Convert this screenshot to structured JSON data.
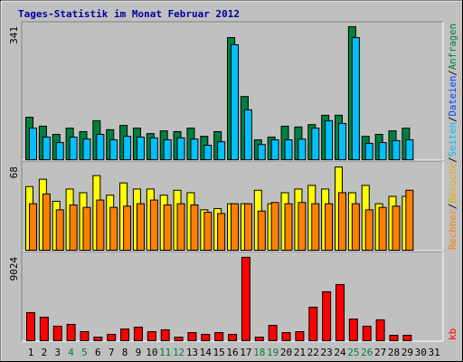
{
  "title": "Tages-Statistik im Monat Februar 2012",
  "separator": "/",
  "extra_label": {
    "text": "Dateien",
    "color": "#0040FF"
  },
  "chart_data": [
    {
      "type": "bar",
      "ylim": [
        0,
        348
      ],
      "yticks": [
        341
      ],
      "categories": [
        "1",
        "2",
        "3",
        "4",
        "5",
        "6",
        "7",
        "8",
        "9",
        "10",
        "11",
        "12",
        "13",
        "14",
        "15",
        "16",
        "17",
        "18",
        "19",
        "20",
        "21",
        "22",
        "23",
        "24",
        "25",
        "26",
        "27",
        "28",
        "29",
        "30",
        "31"
      ],
      "category_colors": [
        "#000000",
        "#000000",
        "#000000",
        "#008040",
        "#008040",
        "#000000",
        "#000000",
        "#000000",
        "#000000",
        "#000000",
        "#008040",
        "#008040",
        "#000000",
        "#000000",
        "#000000",
        "#000000",
        "#000000",
        "#008040",
        "#008040",
        "#000000",
        "#000000",
        "#000000",
        "#000000",
        "#000000",
        "#008040",
        "#008040",
        "#000000",
        "#000000",
        "#000000",
        "#000000",
        "#000000"
      ],
      "series": [
        {
          "name": "Anfragen",
          "color": "#008040",
          "values": [
            109,
            86,
            65,
            81,
            72,
            100,
            77,
            88,
            81,
            67,
            74,
            72,
            81,
            60,
            72,
            313,
            162,
            51,
            58,
            86,
            84,
            90,
            114,
            114,
            341,
            60,
            65,
            74,
            81,
            null,
            null
          ]
        },
        {
          "name": "Seiten",
          "color": "#00C0FF",
          "values": [
            81,
            58,
            44,
            58,
            53,
            65,
            51,
            60,
            58,
            56,
            51,
            56,
            53,
            37,
            46,
            295,
            128,
            39,
            51,
            51,
            53,
            81,
            100,
            93,
            313,
            42,
            44,
            49,
            51,
            null,
            null
          ]
        }
      ]
    },
    {
      "type": "bar",
      "ylim": [
        0,
        71
      ],
      "yticks": [
        68
      ],
      "series": [
        {
          "name": "Besuche",
          "color": "#FFFF00",
          "values": [
            52,
            58,
            40,
            50,
            47,
            61,
            45,
            55,
            50,
            50,
            45,
            49,
            47,
            33,
            34,
            38,
            38,
            49,
            38,
            47,
            50,
            53,
            50,
            68,
            47,
            53,
            38,
            44,
            44,
            null,
            null
          ]
        },
        {
          "name": "Rechner",
          "color": "#FF8000",
          "values": [
            38,
            46,
            33,
            37,
            35,
            41,
            35,
            36,
            38,
            41,
            37,
            38,
            37,
            31,
            30,
            38,
            38,
            32,
            39,
            38,
            39,
            38,
            38,
            47,
            38,
            33,
            35,
            36,
            49,
            null,
            null
          ]
        }
      ]
    },
    {
      "type": "bar",
      "ylim": [
        0,
        9400
      ],
      "yticks": [
        9024
      ],
      "series": [
        {
          "name": "kb",
          "color": "#FF0000",
          "values": [
            3040,
            2550,
            1570,
            1770,
            980,
            390,
            690,
            1270,
            1470,
            980,
            1180,
            390,
            880,
            690,
            880,
            690,
            9024,
            390,
            1670,
            880,
            980,
            3630,
            5300,
            6080,
            2350,
            1570,
            2260,
            590,
            590,
            null,
            null
          ]
        }
      ]
    }
  ]
}
